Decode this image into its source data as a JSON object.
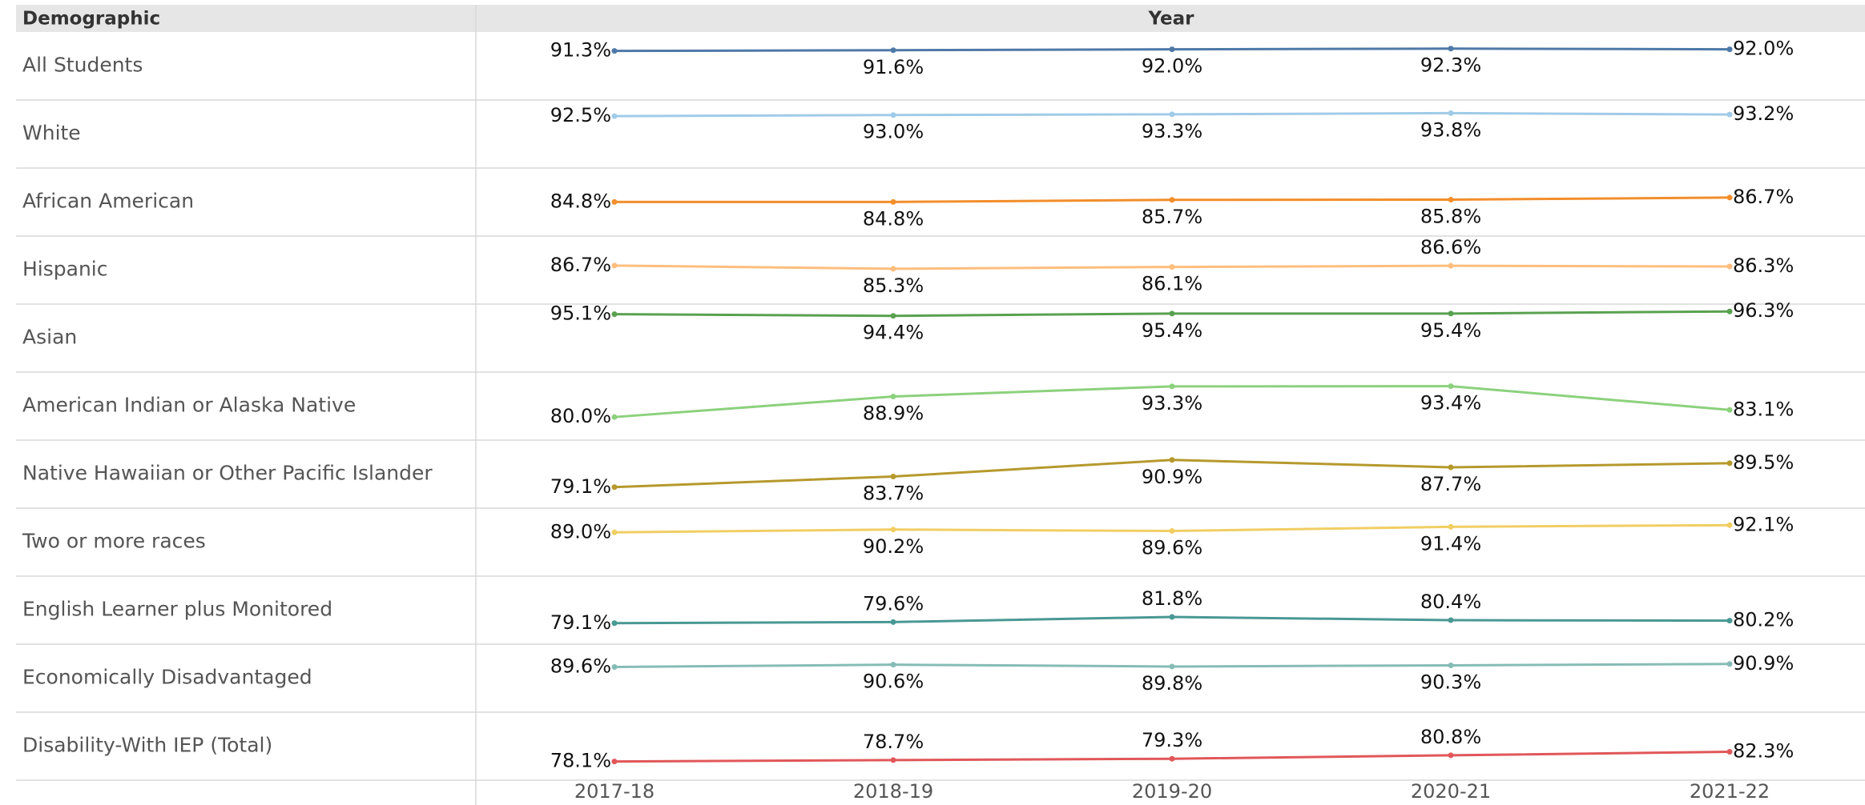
{
  "chart_data": {
    "type": "line",
    "row_header": "Demographic",
    "column_header": "Year",
    "categories": [
      "2017-18",
      "2018-19",
      "2019-20",
      "2020-21",
      "2021-22"
    ],
    "ylim": [
      70,
      99.5
    ],
    "series": [
      {
        "name": "All Students",
        "color": "#4e79a7",
        "values": [
          91.3,
          91.6,
          92.0,
          92.3,
          92.0
        ],
        "value_labels": [
          "91.3%",
          "91.6%",
          "92.0%",
          "92.3%",
          "92.0%"
        ]
      },
      {
        "name": "White",
        "color": "#a0cbe8",
        "values": [
          92.5,
          93.0,
          93.3,
          93.8,
          93.2
        ],
        "value_labels": [
          "92.5%",
          "93.0%",
          "93.3%",
          "93.8%",
          "93.2%"
        ]
      },
      {
        "name": "African American",
        "color": "#f28e2b",
        "values": [
          84.8,
          84.8,
          85.7,
          85.8,
          86.7
        ],
        "value_labels": [
          "84.8%",
          "84.8%",
          "85.7%",
          "85.8%",
          "86.7%"
        ]
      },
      {
        "name": "Hispanic",
        "color": "#ffbe7d",
        "values": [
          86.7,
          85.3,
          86.1,
          86.6,
          86.3
        ],
        "value_labels": [
          "86.7%",
          "85.3%",
          "86.1%",
          "86.6%",
          "86.3%"
        ]
      },
      {
        "name": "Asian",
        "color": "#59a14f",
        "values": [
          95.1,
          94.4,
          95.4,
          95.4,
          96.3
        ],
        "value_labels": [
          "95.1%",
          "94.4%",
          "95.4%",
          "95.4%",
          "96.3%"
        ]
      },
      {
        "name": "American Indian or Alaska Native",
        "color": "#8cd17d",
        "values": [
          80.0,
          88.9,
          93.3,
          93.4,
          83.1
        ],
        "value_labels": [
          "80.0%",
          "88.9%",
          "93.3%",
          "93.4%",
          "83.1%"
        ]
      },
      {
        "name": "Native Hawaiian or Other Pacific Islander",
        "color": "#b6992d",
        "values": [
          79.1,
          83.7,
          90.9,
          87.7,
          89.5
        ],
        "value_labels": [
          "79.1%",
          "83.7%",
          "90.9%",
          "87.7%",
          "89.5%"
        ]
      },
      {
        "name": "Two or more races",
        "color": "#f1ce63",
        "values": [
          89.0,
          90.2,
          89.6,
          91.4,
          92.1
        ],
        "value_labels": [
          "89.0%",
          "90.2%",
          "89.6%",
          "91.4%",
          "92.1%"
        ]
      },
      {
        "name": "English Learner plus Monitored",
        "color": "#499894",
        "values": [
          79.1,
          79.6,
          81.8,
          80.4,
          80.2
        ],
        "value_labels": [
          "79.1%",
          "79.6%",
          "81.8%",
          "80.4%",
          "80.2%"
        ]
      },
      {
        "name": "Economically Disadvantaged",
        "color": "#86bcb6",
        "values": [
          89.6,
          90.6,
          89.8,
          90.3,
          90.9
        ],
        "value_labels": [
          "89.6%",
          "90.6%",
          "89.8%",
          "90.3%",
          "90.9%"
        ]
      },
      {
        "name": "Disability-With IEP (Total)",
        "color": "#e15759",
        "values": [
          78.1,
          78.7,
          79.3,
          80.8,
          82.3
        ],
        "value_labels": [
          "78.1%",
          "78.7%",
          "79.3%",
          "80.8%",
          "82.3%"
        ]
      }
    ]
  }
}
